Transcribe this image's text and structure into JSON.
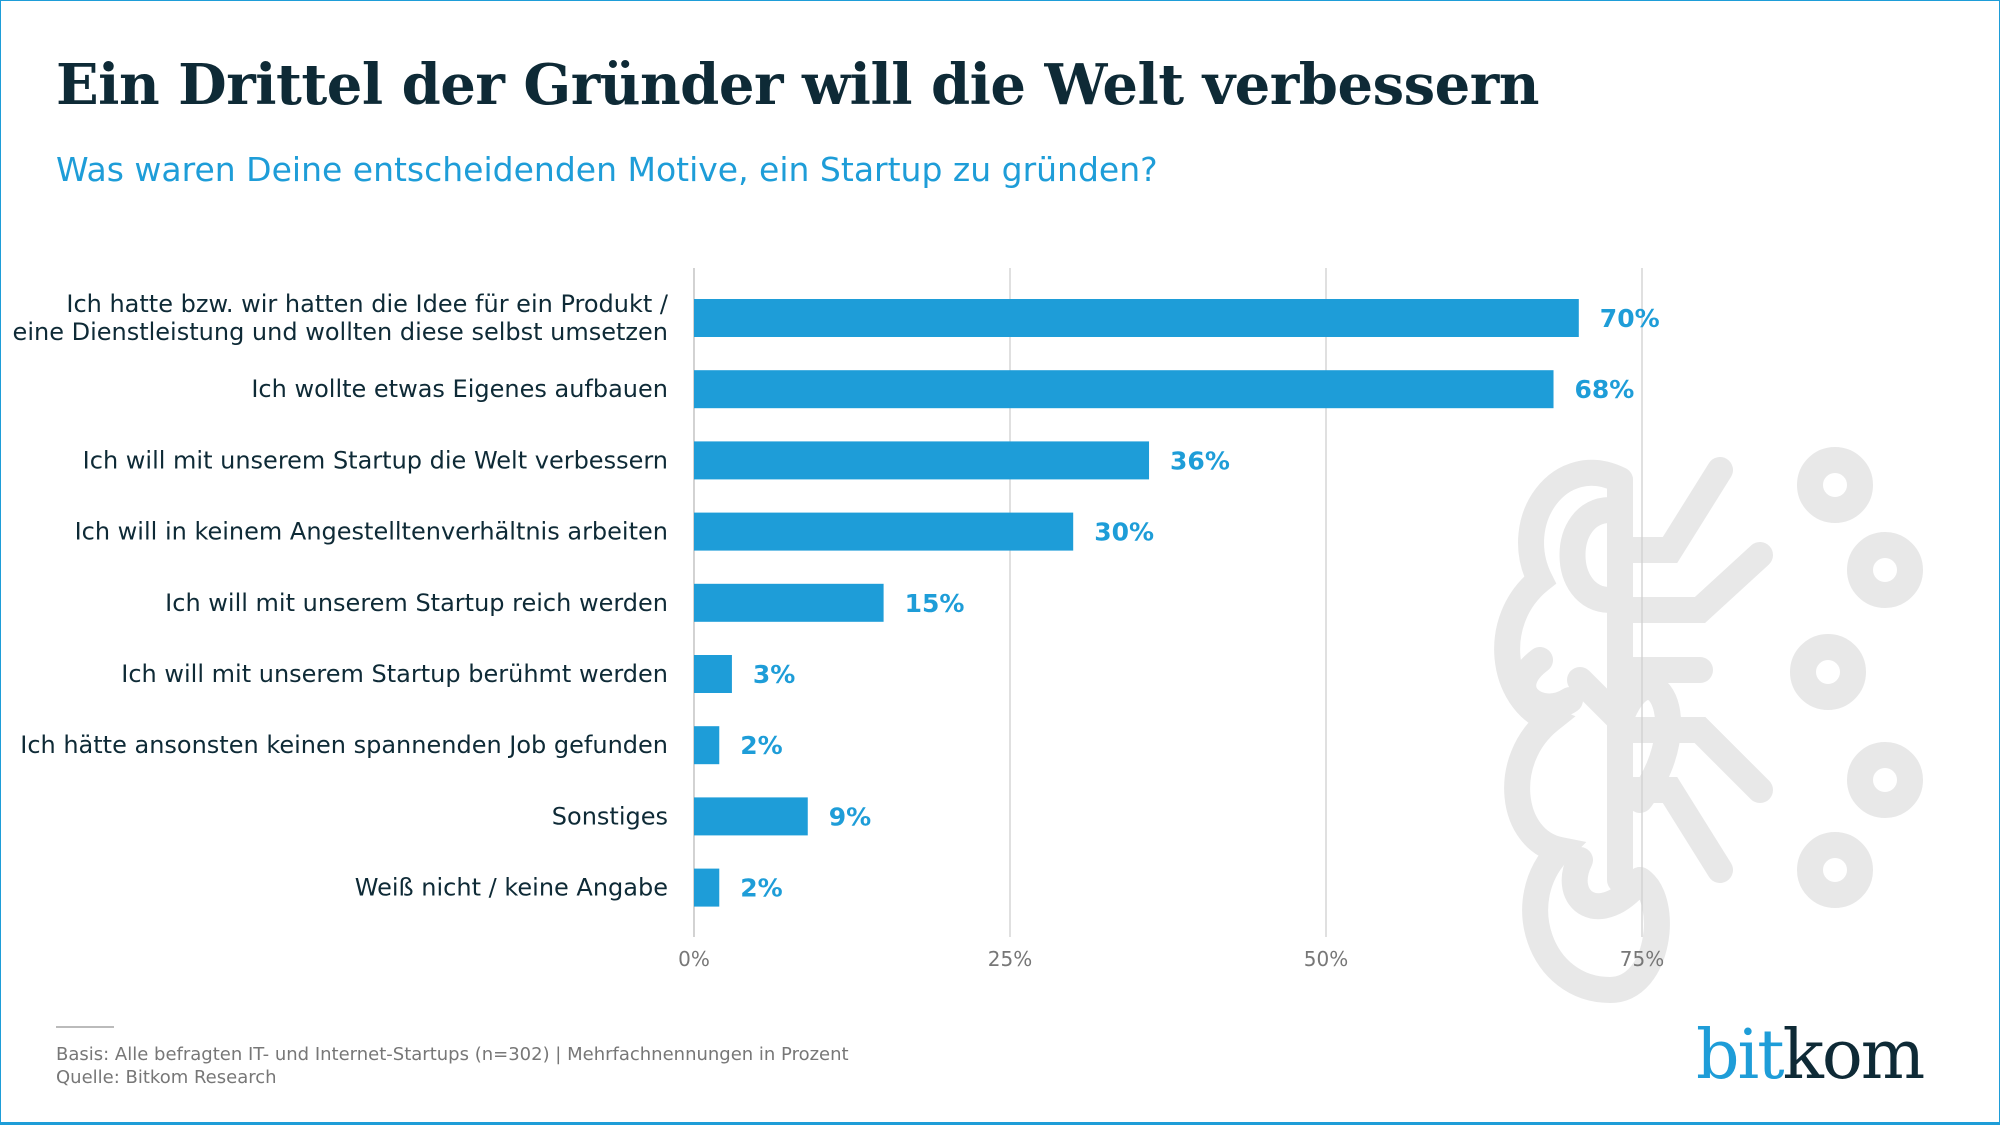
{
  "title": "Ein Drittel der Gründer will die Welt verbessern",
  "subtitle": "Was waren Deine entscheidenden Motive, ein Startup zu gründen?",
  "footer": {
    "basis": "Basis: Alle befragten IT- und Internet-Startups (n=302) | Mehrfachnennungen in Prozent",
    "source": "Quelle: Bitkom Research"
  },
  "logo": {
    "part1": "bit",
    "part2": "kom"
  },
  "colors": {
    "bar": "#1e9dd8",
    "text": "#0e2a36",
    "grid": "#d0d0d0"
  },
  "chart_data": {
    "type": "bar",
    "orientation": "horizontal",
    "categories": [
      [
        "Ich hatte bzw. wir hatten die Idee für ein Produkt /",
        "eine Dienstleistung und wollten diese selbst umsetzen"
      ],
      [
        "Ich wollte etwas Eigenes aufbauen"
      ],
      [
        "Ich will mit unserem Startup die Welt verbessern"
      ],
      [
        "Ich will in keinem Angestelltenverhältnis arbeiten"
      ],
      [
        "Ich will mit unserem Startup reich werden"
      ],
      [
        "Ich will mit unserem Startup berühmt werden"
      ],
      [
        "Ich hätte ansonsten keinen spannenden Job gefunden"
      ],
      [
        "Sonstiges"
      ],
      [
        "Weiß nicht / keine Angabe"
      ]
    ],
    "values": [
      70,
      68,
      36,
      30,
      15,
      3,
      2,
      9,
      2
    ],
    "value_labels": [
      "70%",
      "68%",
      "36%",
      "30%",
      "15%",
      "3%",
      "2%",
      "9%",
      "2%"
    ],
    "xticks": [
      0,
      25,
      50,
      75
    ],
    "xtick_labels": [
      "0%",
      "25%",
      "50%",
      "75%"
    ],
    "xlim": [
      0,
      75
    ],
    "grid": true,
    "xlabel": "",
    "ylabel": ""
  }
}
